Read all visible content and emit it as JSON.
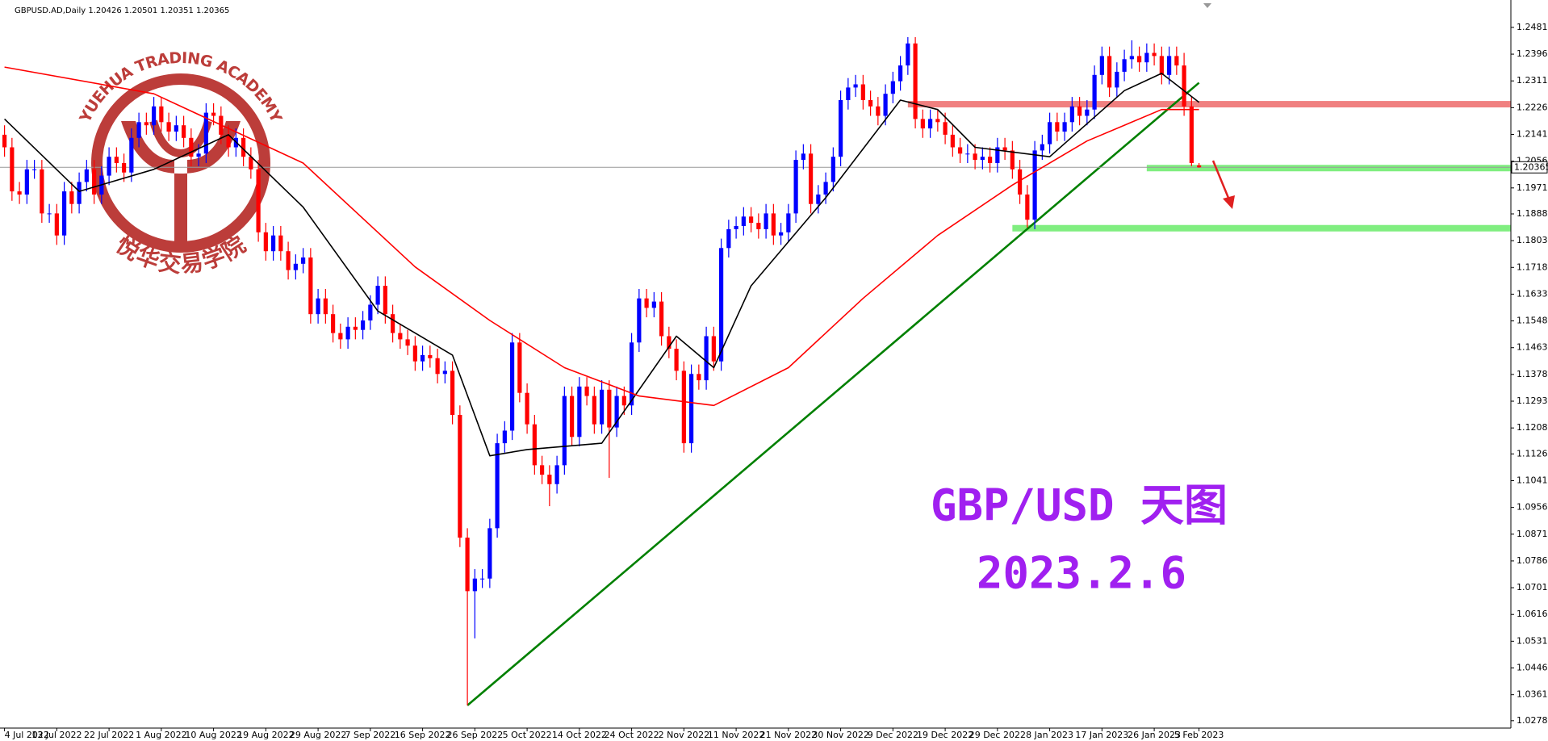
{
  "chart_data": {
    "type": "candlestick",
    "header_text": "GBPUSD.AD,Daily  1.20426 1.20501 1.20351 1.20365",
    "annotations": [
      "GBP/USD 天图",
      "2023.2.6"
    ],
    "annotation_color": "#a020f0",
    "watermark": {
      "top": "YUEHUA TRADING ACADEMY",
      "bottom": "悦华交易学院",
      "color": "#b3231f"
    },
    "up_color": "#0000ff",
    "down_color": "#ff0000",
    "ylim": [
      1.0255,
      1.2568
    ],
    "yticks": [
      {
        "value": 1.2481,
        "label": "1.24810"
      },
      {
        "value": 1.2396,
        "label": "1.23960"
      },
      {
        "value": 1.2311,
        "label": "1.23110"
      },
      {
        "value": 1.2226,
        "label": "1.22260"
      },
      {
        "value": 1.2141,
        "label": "1.21410"
      },
      {
        "value": 1.2056,
        "label": "1.20560"
      },
      {
        "value": 1.1971,
        "label": "1.19710"
      },
      {
        "value": 1.18885,
        "label": "1.18885"
      },
      {
        "value": 1.18035,
        "label": "1.18035"
      },
      {
        "value": 1.17185,
        "label": "1.17185"
      },
      {
        "value": 1.16335,
        "label": "1.16335"
      },
      {
        "value": 1.15485,
        "label": "1.15485"
      },
      {
        "value": 1.14635,
        "label": "1.14635"
      },
      {
        "value": 1.13785,
        "label": "1.13785"
      },
      {
        "value": 1.12935,
        "label": "1.12935"
      },
      {
        "value": 1.12085,
        "label": "1.12085"
      },
      {
        "value": 1.1126,
        "label": "1.11260"
      },
      {
        "value": 1.1041,
        "label": "1.10410"
      },
      {
        "value": 1.0956,
        "label": "1.09560"
      },
      {
        "value": 1.0871,
        "label": "1.08710"
      },
      {
        "value": 1.0786,
        "label": "1.07860"
      },
      {
        "value": 1.0701,
        "label": "1.07010"
      },
      {
        "value": 1.0616,
        "label": "1.06160"
      },
      {
        "value": 1.0531,
        "label": "1.05310"
      },
      {
        "value": 1.0446,
        "label": "1.04460"
      },
      {
        "value": 1.0361,
        "label": "1.03610"
      },
      {
        "value": 1.02785,
        "label": "1.02785"
      }
    ],
    "last_price": {
      "value": 1.20365,
      "label": "1.20365"
    },
    "categories": [
      "4 Jul 2022",
      null,
      null,
      null,
      null,
      null,
      null,
      "13 Jul 2022",
      null,
      null,
      null,
      null,
      null,
      null,
      "22 Jul 2022",
      null,
      null,
      null,
      null,
      null,
      null,
      "1 Aug 2022",
      null,
      null,
      null,
      null,
      null,
      null,
      "10 Aug 2022",
      null,
      null,
      null,
      null,
      null,
      null,
      "19 Aug 2022",
      null,
      null,
      null,
      null,
      null,
      null,
      "29 Aug 2022",
      null,
      null,
      null,
      null,
      null,
      null,
      "7 Sep 2022",
      null,
      null,
      null,
      null,
      null,
      null,
      "16 Sep 2022",
      null,
      null,
      null,
      null,
      null,
      null,
      "26 Sep 2022",
      null,
      null,
      null,
      null,
      null,
      null,
      "5 Oct 2022",
      null,
      null,
      null,
      null,
      null,
      null,
      "14 Oct 2022",
      null,
      null,
      null,
      null,
      null,
      null,
      "24 Oct 2022",
      null,
      null,
      null,
      null,
      null,
      null,
      "2 Nov 2022",
      null,
      null,
      null,
      null,
      null,
      null,
      "11 Nov 2022",
      null,
      null,
      null,
      null,
      null,
      null,
      "21 Nov 2022",
      null,
      null,
      null,
      null,
      null,
      null,
      "30 Nov 2022",
      null,
      null,
      null,
      null,
      null,
      null,
      "9 Dec 2022",
      null,
      null,
      null,
      null,
      null,
      null,
      "19 Dec 2022",
      null,
      null,
      null,
      null,
      null,
      null,
      "29 Dec 2022",
      null,
      null,
      null,
      null,
      null,
      null,
      "8 Jan 2023",
      null,
      null,
      null,
      null,
      null,
      null,
      "17 Jan 2023",
      null,
      null,
      null,
      null,
      null,
      null,
      "26 Jan 2023",
      null,
      null,
      null,
      null,
      null,
      "5 Feb 2023"
    ],
    "open": [
      1.214,
      1.21,
      1.196,
      1.195,
      1.203,
      1.203,
      1.189,
      1.189,
      1.182,
      1.196,
      1.192,
      1.199,
      1.203,
      1.195,
      1.201,
      1.207,
      1.205,
      1.202,
      1.213,
      1.218,
      1.217,
      1.223,
      1.218,
      1.215,
      1.217,
      1.213,
      1.207,
      1.208,
      1.221,
      1.22,
      1.214,
      1.21,
      1.213,
      1.207,
      1.203,
      1.183,
      1.177,
      1.182,
      1.177,
      1.171,
      1.173,
      1.175,
      1.157,
      1.162,
      1.157,
      1.151,
      1.149,
      1.153,
      1.152,
      1.155,
      1.16,
      1.166,
      1.157,
      1.151,
      1.149,
      1.147,
      1.142,
      1.144,
      1.143,
      1.138,
      1.139,
      1.125,
      1.086,
      1.069,
      1.073,
      1.073,
      1.089,
      1.116,
      1.12,
      1.148,
      1.132,
      1.122,
      1.109,
      1.106,
      1.103,
      1.109,
      1.131,
      1.118,
      1.134,
      1.131,
      1.122,
      1.133,
      1.121,
      1.131,
      1.128,
      1.148,
      1.162,
      1.159,
      1.161,
      1.15,
      1.146,
      1.139,
      1.116,
      1.138,
      1.136,
      1.15,
      1.142,
      1.178,
      1.184,
      1.185,
      1.188,
      1.186,
      1.184,
      1.189,
      1.182,
      1.183,
      1.189,
      1.206,
      1.208,
      1.192,
      1.195,
      1.199,
      1.207,
      1.225,
      1.229,
      1.23,
      1.225,
      1.223,
      1.22,
      1.227,
      1.231,
      1.236,
      1.243,
      1.219,
      1.216,
      1.219,
      1.218,
      1.214,
      1.21,
      1.208,
      1.208,
      1.206,
      1.207,
      1.205,
      1.21,
      1.209,
      1.203,
      1.195,
      1.187,
      1.209,
      1.211,
      1.218,
      1.215,
      1.218,
      1.223,
      1.22,
      1.222,
      1.233,
      1.239,
      1.229,
      1.234,
      1.238,
      1.239,
      1.237,
      1.24,
      1.239,
      1.233,
      1.239,
      1.236,
      1.223,
      1.20426
    ],
    "high": [
      1.217,
      1.213,
      1.199,
      1.206,
      1.206,
      1.206,
      1.192,
      1.192,
      1.199,
      1.199,
      1.202,
      1.206,
      1.206,
      1.204,
      1.21,
      1.21,
      1.208,
      1.216,
      1.221,
      1.221,
      1.226,
      1.226,
      1.221,
      1.22,
      1.22,
      1.216,
      1.211,
      1.224,
      1.224,
      1.223,
      1.217,
      1.216,
      1.216,
      1.21,
      1.206,
      1.186,
      1.185,
      1.185,
      1.18,
      1.176,
      1.178,
      1.178,
      1.165,
      1.165,
      1.16,
      1.154,
      1.156,
      1.156,
      1.158,
      1.163,
      1.169,
      1.169,
      1.16,
      1.154,
      1.152,
      1.15,
      1.147,
      1.147,
      1.146,
      1.142,
      1.142,
      1.128,
      1.089,
      1.076,
      1.076,
      1.092,
      1.119,
      1.123,
      1.151,
      1.151,
      1.135,
      1.125,
      1.112,
      1.109,
      1.112,
      1.134,
      1.134,
      1.137,
      1.137,
      1.134,
      1.136,
      1.136,
      1.134,
      1.134,
      1.151,
      1.165,
      1.165,
      1.164,
      1.164,
      1.153,
      1.149,
      1.142,
      1.141,
      1.141,
      1.153,
      1.153,
      1.181,
      1.187,
      1.188,
      1.191,
      1.191,
      1.189,
      1.192,
      1.192,
      1.186,
      1.192,
      1.209,
      1.211,
      1.211,
      1.198,
      1.202,
      1.21,
      1.228,
      1.232,
      1.233,
      1.233,
      1.228,
      1.226,
      1.23,
      1.234,
      1.239,
      1.245,
      1.245,
      1.222,
      1.222,
      1.222,
      1.221,
      1.217,
      1.213,
      1.211,
      1.211,
      1.21,
      1.21,
      1.213,
      1.213,
      1.212,
      1.206,
      1.198,
      1.212,
      1.214,
      1.221,
      1.221,
      1.221,
      1.226,
      1.226,
      1.225,
      1.236,
      1.242,
      1.242,
      1.237,
      1.241,
      1.244,
      1.242,
      1.243,
      1.243,
      1.242,
      1.242,
      1.242,
      1.24,
      1.226,
      1.20501
    ],
    "low": [
      1.207,
      1.193,
      1.192,
      1.192,
      1.2,
      1.186,
      1.186,
      1.179,
      1.179,
      1.189,
      1.189,
      1.196,
      1.192,
      1.192,
      1.198,
      1.202,
      1.199,
      1.199,
      1.21,
      1.214,
      1.214,
      1.215,
      1.212,
      1.212,
      1.21,
      1.204,
      1.204,
      1.205,
      1.217,
      1.211,
      1.207,
      1.207,
      1.204,
      1.2,
      1.18,
      1.174,
      1.174,
      1.174,
      1.168,
      1.168,
      1.17,
      1.154,
      1.154,
      1.154,
      1.148,
      1.146,
      1.146,
      1.149,
      1.149,
      1.152,
      1.157,
      1.154,
      1.148,
      1.146,
      1.144,
      1.139,
      1.139,
      1.14,
      1.135,
      1.135,
      1.122,
      1.083,
      1.0327,
      1.054,
      1.07,
      1.07,
      1.086,
      1.113,
      1.117,
      1.129,
      1.119,
      1.106,
      1.103,
      1.096,
      1.1,
      1.106,
      1.115,
      1.115,
      1.128,
      1.119,
      1.119,
      1.105,
      1.118,
      1.125,
      1.125,
      1.145,
      1.156,
      1.156,
      1.147,
      1.143,
      1.136,
      1.113,
      1.113,
      1.133,
      1.133,
      1.139,
      1.139,
      1.175,
      1.181,
      1.182,
      1.183,
      1.181,
      1.181,
      1.179,
      1.179,
      1.18,
      1.186,
      1.203,
      1.189,
      1.189,
      1.192,
      1.196,
      1.204,
      1.222,
      1.226,
      1.222,
      1.22,
      1.217,
      1.217,
      1.224,
      1.228,
      1.233,
      1.216,
      1.213,
      1.213,
      1.215,
      1.211,
      1.207,
      1.205,
      1.205,
      1.203,
      1.203,
      1.202,
      1.202,
      1.206,
      1.2,
      1.192,
      1.1845,
      1.184,
      1.206,
      1.208,
      1.212,
      1.212,
      1.215,
      1.217,
      1.217,
      1.219,
      1.23,
      1.226,
      1.226,
      1.231,
      1.235,
      1.234,
      1.234,
      1.236,
      1.23,
      1.23,
      1.233,
      1.22,
      1.204,
      1.20351
    ],
    "close": [
      1.21,
      1.196,
      1.195,
      1.203,
      1.203,
      1.189,
      1.189,
      1.182,
      1.196,
      1.192,
      1.199,
      1.203,
      1.195,
      1.201,
      1.207,
      1.205,
      1.202,
      1.213,
      1.218,
      1.217,
      1.223,
      1.218,
      1.215,
      1.217,
      1.213,
      1.207,
      1.208,
      1.221,
      1.22,
      1.214,
      1.21,
      1.213,
      1.207,
      1.203,
      1.183,
      1.177,
      1.182,
      1.177,
      1.171,
      1.173,
      1.175,
      1.157,
      1.162,
      1.157,
      1.151,
      1.149,
      1.153,
      1.152,
      1.155,
      1.16,
      1.166,
      1.157,
      1.151,
      1.149,
      1.147,
      1.142,
      1.144,
      1.143,
      1.138,
      1.139,
      1.125,
      1.086,
      1.069,
      1.073,
      1.073,
      1.089,
      1.116,
      1.12,
      1.148,
      1.132,
      1.122,
      1.109,
      1.106,
      1.103,
      1.109,
      1.131,
      1.118,
      1.134,
      1.131,
      1.122,
      1.133,
      1.121,
      1.131,
      1.128,
      1.148,
      1.162,
      1.159,
      1.161,
      1.15,
      1.146,
      1.139,
      1.116,
      1.138,
      1.136,
      1.15,
      1.142,
      1.178,
      1.184,
      1.185,
      1.188,
      1.186,
      1.184,
      1.189,
      1.182,
      1.183,
      1.189,
      1.206,
      1.208,
      1.192,
      1.195,
      1.199,
      1.207,
      1.225,
      1.229,
      1.23,
      1.225,
      1.223,
      1.22,
      1.227,
      1.231,
      1.236,
      1.243,
      1.219,
      1.216,
      1.219,
      1.218,
      1.214,
      1.21,
      1.208,
      1.208,
      1.206,
      1.207,
      1.205,
      1.21,
      1.209,
      1.203,
      1.195,
      1.187,
      1.209,
      1.211,
      1.218,
      1.215,
      1.218,
      1.223,
      1.22,
      1.222,
      1.233,
      1.239,
      1.229,
      1.234,
      1.238,
      1.239,
      1.237,
      1.24,
      1.239,
      1.233,
      1.239,
      1.236,
      1.223,
      1.205,
      1.20365
    ],
    "ma_lines": [
      {
        "color": "#000000",
        "x": [
          0,
          10,
          20,
          30,
          40,
          50,
          60,
          65,
          70,
          80,
          90,
          95,
          100,
          110,
          120,
          125,
          130,
          140,
          150,
          155,
          160
        ],
        "values": [
          1.219,
          1.196,
          1.203,
          1.214,
          1.191,
          1.158,
          1.144,
          1.112,
          1.114,
          1.116,
          1.15,
          1.14,
          1.166,
          1.194,
          1.225,
          1.222,
          1.21,
          1.207,
          1.228,
          1.2335,
          1.2243
        ]
      },
      {
        "color": "#ff0000",
        "x": [
          0,
          20,
          40,
          55,
          65,
          75,
          85,
          95,
          105,
          115,
          125,
          135,
          145,
          155,
          160
        ],
        "values": [
          1.2355,
          1.227,
          1.205,
          1.172,
          1.155,
          1.14,
          1.131,
          1.128,
          1.14,
          1.162,
          1.182,
          1.198,
          1.212,
          1.222,
          1.222
        ]
      }
    ],
    "trendline": {
      "color": "#008000",
      "x": [
        62,
        160
      ],
      "values": [
        1.0327,
        1.2305
      ]
    },
    "levels": [
      {
        "value": 1.2237,
        "x_start": 121,
        "color": "#f08080"
      },
      {
        "value": 1.2034,
        "x_start": 153,
        "color": "#80ee80"
      },
      {
        "value": 1.1843,
        "x_start": 135,
        "color": "#80ee80"
      }
    ]
  }
}
